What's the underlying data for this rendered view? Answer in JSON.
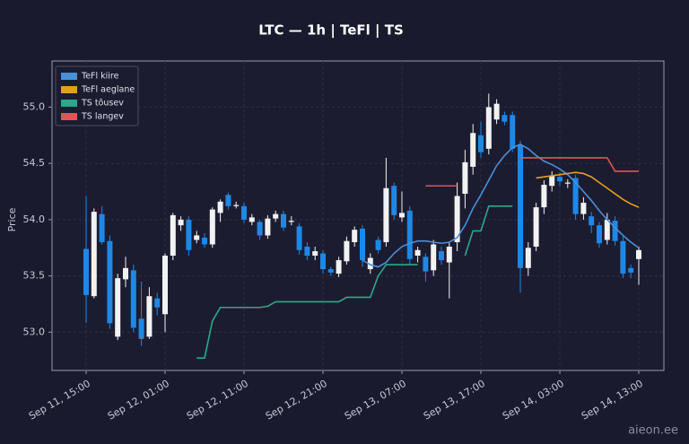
{
  "chart_data": {
    "type": "candlestick",
    "title": "LTC — 1h  |  TeFl  |  TS",
    "ylabel": "Price",
    "watermark": "aieon.ee",
    "categories": [
      "Sep 11, 15:00",
      null,
      null,
      null,
      null,
      null,
      null,
      null,
      null,
      null,
      "Sep 12, 01:00",
      null,
      null,
      null,
      null,
      null,
      null,
      null,
      null,
      null,
      "Sep 12, 11:00",
      null,
      null,
      null,
      null,
      null,
      null,
      null,
      null,
      null,
      "Sep 12, 21:00",
      null,
      null,
      null,
      null,
      null,
      null,
      null,
      null,
      null,
      "Sep 13, 07:00",
      null,
      null,
      null,
      null,
      null,
      null,
      null,
      null,
      null,
      "Sep 13, 17:00",
      null,
      null,
      null,
      null,
      null,
      null,
      null,
      null,
      null,
      "Sep 14, 03:00",
      null,
      null,
      null,
      null,
      null,
      null,
      null,
      null,
      null,
      "Sep 14, 13:00"
    ],
    "open": [
      53.74,
      53.32,
      54.05,
      53.81,
      52.96,
      53.47,
      53.55,
      53.12,
      52.96,
      53.3,
      53.16,
      53.68,
      53.95,
      54.0,
      53.82,
      53.84,
      53.78,
      54.06,
      54.22,
      54.12,
      54.12,
      53.98,
      53.98,
      53.86,
      54.01,
      54.05,
      53.98,
      53.94,
      53.76,
      53.68,
      53.7,
      53.56,
      53.52,
      53.63,
      53.8,
      53.92,
      53.56,
      53.82,
      53.8,
      54.3,
      54.02,
      54.08,
      53.68,
      53.67,
      53.55,
      53.72,
      53.62,
      53.8,
      54.23,
      54.47,
      54.75,
      54.63,
      54.89,
      54.93,
      54.93,
      54.66,
      53.57,
      53.76,
      54.11,
      54.3,
      54.38,
      54.32,
      54.37,
      54.05,
      54.03,
      53.95,
      53.82,
      53.99,
      53.81,
      53.57,
      53.65
    ],
    "high": [
      54.21,
      54.1,
      54.12,
      53.86,
      53.52,
      53.67,
      53.6,
      53.45,
      53.4,
      53.35,
      53.7,
      54.06,
      54.03,
      54.03,
      53.9,
      53.88,
      54.11,
      54.18,
      54.24,
      54.16,
      54.15,
      54.05,
      54.0,
      54.04,
      54.08,
      54.08,
      54.03,
      53.97,
      53.8,
      53.76,
      53.73,
      53.58,
      53.67,
      53.85,
      53.94,
      53.95,
      53.7,
      53.85,
      54.55,
      54.33,
      54.25,
      54.12,
      53.76,
      53.7,
      53.82,
      53.76,
      53.8,
      54.33,
      54.62,
      54.85,
      54.87,
      55.12,
      55.07,
      54.96,
      54.96,
      54.7,
      53.8,
      54.15,
      54.35,
      54.43,
      54.42,
      54.36,
      54.4,
      54.2,
      54.07,
      53.98,
      54.06,
      54.03,
      53.85,
      53.6,
      53.76
    ],
    "low": [
      53.08,
      53.3,
      53.78,
      53.03,
      52.93,
      53.4,
      53.0,
      52.88,
      52.94,
      53.15,
      53.0,
      53.64,
      53.9,
      53.68,
      53.79,
      53.75,
      53.75,
      53.98,
      54.09,
      54.1,
      53.97,
      53.95,
      53.82,
      53.83,
      53.98,
      53.9,
      53.95,
      53.69,
      53.64,
      53.64,
      53.52,
      53.5,
      53.49,
      53.6,
      53.76,
      53.58,
      53.52,
      53.7,
      53.76,
      54.0,
      53.98,
      53.6,
      53.62,
      53.45,
      53.5,
      53.6,
      53.3,
      53.72,
      54.1,
      54.4,
      54.55,
      54.58,
      54.85,
      54.84,
      54.6,
      53.35,
      53.5,
      53.72,
      54.05,
      54.25,
      54.3,
      54.28,
      54.0,
      54.0,
      53.88,
      53.75,
      53.78,
      53.77,
      53.48,
      53.48,
      53.42
    ],
    "close": [
      53.33,
      54.07,
      53.8,
      53.08,
      53.48,
      53.57,
      53.04,
      52.94,
      53.32,
      53.22,
      53.68,
      54.04,
      54.0,
      53.73,
      53.86,
      53.78,
      54.09,
      54.16,
      54.12,
      54.13,
      54.0,
      54.02,
      53.86,
      54.01,
      54.05,
      53.93,
      53.99,
      53.73,
      53.68,
      53.72,
      53.56,
      53.53,
      53.64,
      53.81,
      53.91,
      53.64,
      53.66,
      53.73,
      54.28,
      54.04,
      54.06,
      53.65,
      53.73,
      53.54,
      53.78,
      53.64,
      53.76,
      54.21,
      54.51,
      54.77,
      54.6,
      55.0,
      55.03,
      54.87,
      54.63,
      53.57,
      53.75,
      54.11,
      54.31,
      54.39,
      54.34,
      54.33,
      54.05,
      54.15,
      53.95,
      53.79,
      54.0,
      53.81,
      53.52,
      53.53,
      53.73
    ],
    "up_color": "#f2f2f2",
    "down_color": "#1e88e5",
    "series": [
      {
        "name": "TeFl kiire",
        "color": "#4a90d9",
        "values": [
          null,
          null,
          null,
          null,
          null,
          null,
          null,
          null,
          null,
          null,
          null,
          null,
          null,
          null,
          null,
          null,
          null,
          null,
          null,
          null,
          null,
          null,
          null,
          null,
          null,
          null,
          null,
          null,
          null,
          null,
          null,
          null,
          null,
          null,
          null,
          53.64,
          53.6,
          53.58,
          53.62,
          53.7,
          53.76,
          53.79,
          53.81,
          53.81,
          53.8,
          53.79,
          53.8,
          53.84,
          53.95,
          54.1,
          54.22,
          54.35,
          54.48,
          54.57,
          54.64,
          54.67,
          54.63,
          54.57,
          54.52,
          54.49,
          54.45,
          54.4,
          54.33,
          54.25,
          54.17,
          54.08,
          54.0,
          53.93,
          53.86,
          53.8,
          53.75
        ]
      },
      {
        "name": "TeFl aeglane",
        "color": "#e0a020",
        "values": [
          null,
          null,
          null,
          null,
          null,
          null,
          null,
          null,
          null,
          null,
          null,
          null,
          null,
          null,
          null,
          null,
          null,
          null,
          null,
          null,
          null,
          null,
          null,
          null,
          null,
          null,
          null,
          null,
          null,
          null,
          null,
          null,
          null,
          null,
          null,
          null,
          null,
          null,
          null,
          null,
          null,
          null,
          null,
          null,
          null,
          null,
          null,
          null,
          null,
          null,
          null,
          null,
          null,
          null,
          null,
          null,
          null,
          54.37,
          54.38,
          54.39,
          54.4,
          54.41,
          54.42,
          54.41,
          54.38,
          54.33,
          54.28,
          54.23,
          54.18,
          54.14,
          54.11
        ]
      },
      {
        "name": "TS tõusev",
        "color": "#2aa889",
        "values": [
          null,
          null,
          null,
          null,
          null,
          null,
          null,
          null,
          null,
          null,
          null,
          null,
          null,
          null,
          52.77,
          52.77,
          53.1,
          53.22,
          53.22,
          53.22,
          53.22,
          53.22,
          53.22,
          53.23,
          53.27,
          53.27,
          53.27,
          53.27,
          53.27,
          53.27,
          53.27,
          53.27,
          53.27,
          53.31,
          53.31,
          53.31,
          53.31,
          53.5,
          53.6,
          53.6,
          53.6,
          53.6,
          53.6,
          null,
          null,
          null,
          null,
          null,
          53.68,
          53.9,
          53.9,
          54.12,
          54.12,
          54.12,
          54.12,
          null,
          null,
          null,
          null,
          null,
          null,
          null,
          null,
          null,
          null,
          null,
          null,
          null,
          null,
          null,
          null
        ]
      },
      {
        "name": "TS langev",
        "color": "#e05555",
        "values": [
          null,
          null,
          null,
          null,
          null,
          null,
          null,
          null,
          null,
          null,
          null,
          null,
          null,
          null,
          null,
          null,
          null,
          null,
          null,
          null,
          null,
          null,
          null,
          null,
          null,
          null,
          null,
          null,
          null,
          null,
          null,
          null,
          null,
          null,
          null,
          null,
          null,
          null,
          null,
          null,
          null,
          null,
          null,
          54.3,
          54.3,
          54.3,
          54.3,
          54.3,
          null,
          null,
          null,
          null,
          null,
          null,
          null,
          54.55,
          54.55,
          54.55,
          54.55,
          54.55,
          54.55,
          54.55,
          54.55,
          54.55,
          54.55,
          54.55,
          54.55,
          54.43,
          54.43,
          54.43,
          54.43
        ]
      }
    ],
    "ylim": [
      52.66,
      55.41
    ],
    "yticks": [
      {
        "value": 53,
        "label": "53.0"
      },
      {
        "value": 53.5,
        "label": "53.5"
      },
      {
        "value": 54,
        "label": "54.0"
      },
      {
        "value": 54.5,
        "label": "54.5"
      },
      {
        "value": 55,
        "label": "55.0"
      }
    ],
    "grid": true,
    "legend": "upper left"
  }
}
